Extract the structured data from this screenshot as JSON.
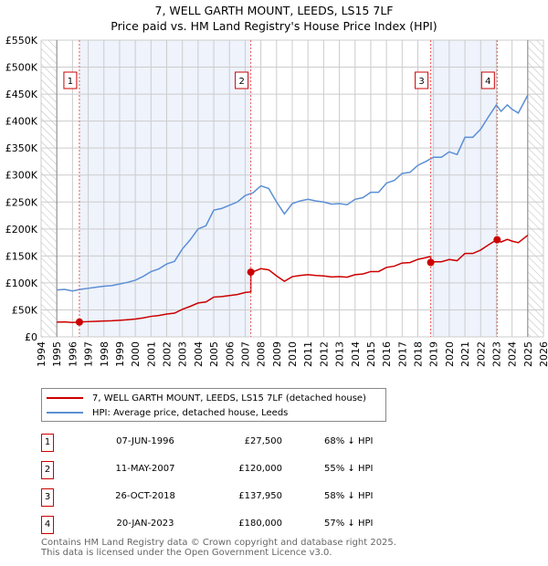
{
  "chart_data": {
    "type": "line",
    "title": "7, WELL GARTH MOUNT, LEEDS, LS15 7LF",
    "subtitle": "Price paid vs. HM Land Registry's House Price Index (HPI)",
    "xlim": [
      1994,
      2026
    ],
    "ylim": [
      0,
      550000
    ],
    "xticks": [
      "1994",
      "1995",
      "1996",
      "1997",
      "1998",
      "1999",
      "2000",
      "2001",
      "2002",
      "2003",
      "2004",
      "2005",
      "2006",
      "2007",
      "2008",
      "2009",
      "2010",
      "2011",
      "2012",
      "2013",
      "2014",
      "2015",
      "2016",
      "2017",
      "2018",
      "2019",
      "2020",
      "2021",
      "2022",
      "2023",
      "2024",
      "2025",
      "2026"
    ],
    "yticks": [
      {
        "v": 0,
        "label": "£0"
      },
      {
        "v": 50000,
        "label": "£50K"
      },
      {
        "v": 100000,
        "label": "£100K"
      },
      {
        "v": 150000,
        "label": "£150K"
      },
      {
        "v": 200000,
        "label": "£200K"
      },
      {
        "v": 250000,
        "label": "£250K"
      },
      {
        "v": 300000,
        "label": "£300K"
      },
      {
        "v": 350000,
        "label": "£350K"
      },
      {
        "v": 400000,
        "label": "£400K"
      },
      {
        "v": 450000,
        "label": "£450K"
      },
      {
        "v": 500000,
        "label": "£500K"
      },
      {
        "v": 550000,
        "label": "£550K"
      }
    ],
    "grid": true,
    "data_range": [
      1995,
      2025
    ],
    "colors": {
      "property": "#cc0000",
      "hpi": "#5b8fd4",
      "shade": "#eef3fc"
    },
    "series": [
      {
        "name": "7, WELL GARTH MOUNT, LEEDS, LS15 7LF (detached house)",
        "key": "property"
      },
      {
        "name": "HPI: Average price, detached house, Leeds",
        "key": "hpi",
        "x": [
          1995,
          1995.5,
          1996,
          1996.5,
          1997,
          1997.5,
          1998,
          1998.5,
          1999,
          1999.5,
          2000,
          2000.5,
          2001,
          2001.5,
          2002,
          2002.5,
          2003,
          2003.5,
          2004,
          2004.5,
          2005,
          2005.5,
          2006,
          2006.5,
          2007,
          2007.5,
          2008,
          2008.5,
          2009,
          2009.5,
          2010,
          2010.5,
          2011,
          2011.5,
          2012,
          2012.5,
          2013,
          2013.5,
          2014,
          2014.5,
          2015,
          2015.5,
          2016,
          2016.5,
          2017,
          2017.5,
          2018,
          2018.5,
          2019,
          2019.5,
          2020,
          2020.5,
          2021,
          2021.5,
          2022,
          2022.5,
          2023,
          2023.3,
          2023.7,
          2024,
          2024.4,
          2025
        ],
        "y": [
          87000,
          88000,
          85000,
          88000,
          90000,
          92000,
          94000,
          95000,
          98000,
          101000,
          105000,
          112000,
          121000,
          126000,
          135000,
          140000,
          163000,
          180000,
          200000,
          206000,
          235000,
          238000,
          244000,
          250000,
          262000,
          267000,
          280000,
          275000,
          250000,
          228000,
          247000,
          252000,
          255000,
          252000,
          250000,
          246000,
          247000,
          245000,
          255000,
          258000,
          268000,
          268000,
          285000,
          290000,
          303000,
          305000,
          318000,
          325000,
          333000,
          333000,
          343000,
          338000,
          370000,
          370000,
          385000,
          408000,
          430000,
          418000,
          430000,
          422000,
          415000,
          448000
        ]
      }
    ],
    "sales": [
      {
        "n": "1",
        "x": 1996.44,
        "date": "07-JUN-1996",
        "price": 27500,
        "price_label": "£27,500",
        "hpi_label": "68% ↓ HPI"
      },
      {
        "n": "2",
        "x": 2007.36,
        "date": "11-MAY-2007",
        "price": 120000,
        "price_label": "£120,000",
        "hpi_label": "55% ↓ HPI"
      },
      {
        "n": "3",
        "x": 2018.82,
        "date": "26-OCT-2018",
        "price": 137950,
        "price_label": "£137,950",
        "hpi_label": "58% ↓ HPI"
      },
      {
        "n": "4",
        "x": 2023.05,
        "date": "20-JAN-2023",
        "price": 180000,
        "price_label": "£180,000",
        "hpi_label": "57% ↓ HPI"
      }
    ]
  },
  "footer": {
    "line1": "Contains HM Land Registry data © Crown copyright and database right 2025.",
    "line2": "This data is licensed under the Open Government Licence v3.0."
  }
}
